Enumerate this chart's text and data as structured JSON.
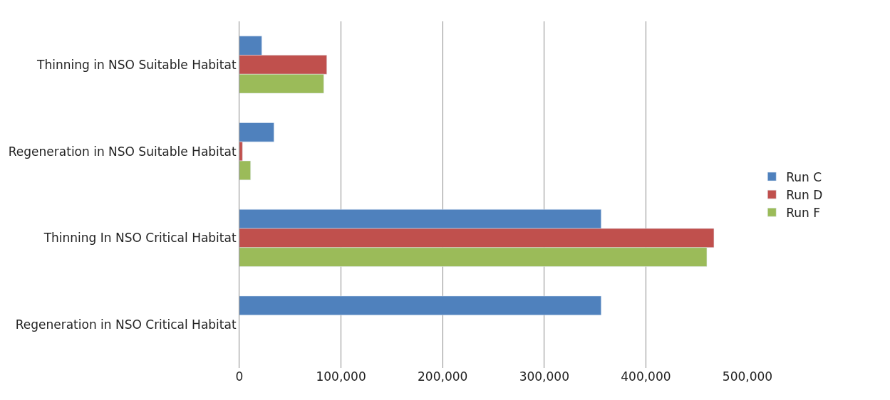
{
  "chart_data": {
    "type": "bar",
    "orientation": "horizontal",
    "categories": [
      "Thinning in NSO Suitable Habitat",
      "Regeneration in NSO Suitable Habitat",
      "Thinning In NSO Critical Habitat",
      "Regeneration in NSO Critical Habitat"
    ],
    "series": [
      {
        "name": "Run C",
        "color": "#4f81bd",
        "values": [
          22000,
          34000,
          356000,
          356000
        ]
      },
      {
        "name": "Run D",
        "color": "#c0504d",
        "values": [
          86000,
          3000,
          467000,
          null
        ]
      },
      {
        "name": "Run F",
        "color": "#9bbb59",
        "values": [
          83000,
          11000,
          460000,
          null
        ]
      }
    ],
    "xlim": [
      0,
      500000
    ],
    "xticks": [
      {
        "value": 0,
        "label": "0"
      },
      {
        "value": 100000,
        "label": "100,000"
      },
      {
        "value": 200000,
        "label": "200,000"
      },
      {
        "value": 300000,
        "label": "300,000"
      },
      {
        "value": 400000,
        "label": "400,000"
      },
      {
        "value": 500000,
        "label": "500,000"
      }
    ],
    "grid": "x",
    "legend": "right"
  }
}
